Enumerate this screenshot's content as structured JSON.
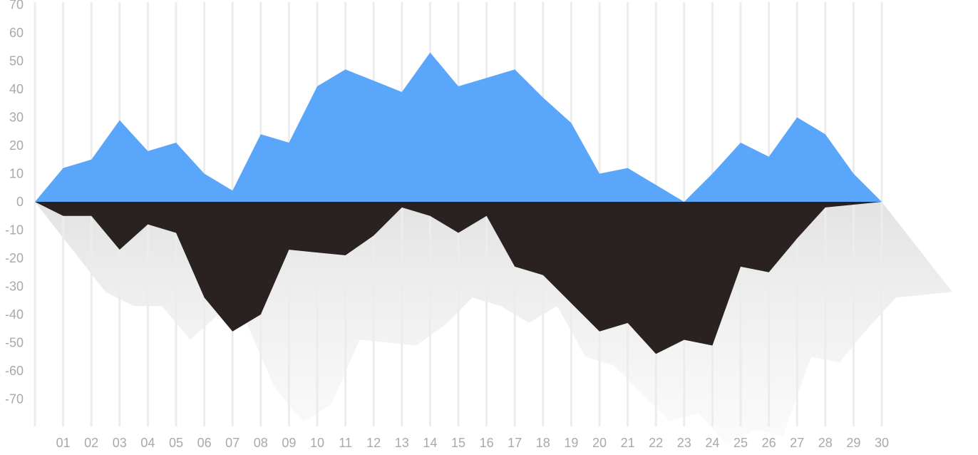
{
  "chart_data": {
    "type": "area",
    "title": "",
    "xlabel": "",
    "ylabel": "",
    "grid": {
      "vertical": true,
      "horizontal": false
    },
    "legend": "none",
    "ylim": [
      -80,
      70
    ],
    "y_ticks": [
      70,
      60,
      50,
      40,
      30,
      20,
      10,
      0,
      -10,
      -20,
      -30,
      -40,
      -50,
      -60,
      -70
    ],
    "x_ticks": [
      "01",
      "02",
      "03",
      "04",
      "05",
      "06",
      "07",
      "08",
      "09",
      "10",
      "11",
      "12",
      "13",
      "14",
      "15",
      "16",
      "17",
      "18",
      "19",
      "20",
      "21",
      "22",
      "23",
      "24",
      "25",
      "26",
      "27",
      "28",
      "29",
      "30"
    ],
    "x": [
      0,
      1,
      2,
      3,
      4,
      5,
      6,
      7,
      8,
      9,
      10,
      11,
      12,
      13,
      14,
      15,
      16,
      17,
      18,
      19,
      20,
      21,
      22,
      23,
      24,
      25,
      26,
      27,
      28,
      29,
      30
    ],
    "series": [
      {
        "color": "#5aa6fb",
        "values": [
          0,
          12,
          15,
          29,
          18,
          21,
          10,
          4,
          24,
          21,
          41,
          47,
          43,
          39,
          53,
          41,
          44,
          47,
          37,
          28,
          10,
          12,
          6,
          0,
          10,
          21,
          16,
          30,
          24,
          10,
          0
        ]
      },
      {
        "color": "#2a2220",
        "values": [
          0,
          -5,
          -5,
          -17,
          -8,
          -11,
          -34,
          -46,
          -40,
          -17,
          -18,
          -19,
          -12,
          -2,
          -5,
          -11,
          -5,
          -23,
          -26,
          -36,
          -46,
          -43,
          -54,
          -49,
          -51,
          -23,
          -25,
          -13,
          -2,
          -1,
          0
        ]
      }
    ],
    "colors": {
      "positive": "#5aa6fb",
      "negative": "#2a2220",
      "shadow": "#e6e6e6",
      "grid": "#ececec",
      "tick_text": "#a9a9a9"
    }
  }
}
